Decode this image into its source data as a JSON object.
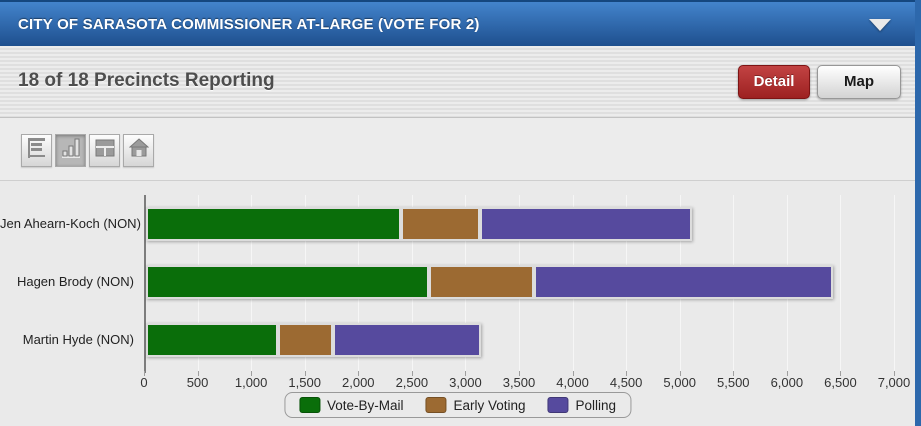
{
  "header": {
    "title": "CITY OF SARASOTA COMMISSIONER AT-LARGE (VOTE FOR 2)",
    "collapse_icon": "chevron-down-icon"
  },
  "statusbar": {
    "precincts_text": "18 of 18 Precincts Reporting",
    "detail_label": "Detail",
    "map_label": "Map"
  },
  "toolbar": {
    "view_buttons": [
      {
        "icon": "horizontal-bar-chart-icon",
        "selected": false
      },
      {
        "icon": "column-chart-icon",
        "selected": true
      },
      {
        "icon": "grid-view-icon",
        "selected": false
      },
      {
        "icon": "home-icon",
        "selected": false
      }
    ]
  },
  "colors": {
    "header_blue_top": "#4384cc",
    "header_blue_bottom": "#1e4f8e",
    "detail_button_red": "#a82a2a",
    "page_background_blue": "#2d68ac",
    "chart_background": "#eaeaea"
  },
  "chart_data": {
    "type": "bar",
    "orientation": "horizontal",
    "stacked": true,
    "grid": true,
    "legend_position": "bottom",
    "categories": [
      "Jen Ahearn-Koch (NON)",
      "Hagen Brody (NON)",
      "Martin Hyde (NON)"
    ],
    "series": [
      {
        "name": "Vote-By-Mail",
        "color": "#0a6e0a",
        "values": [
          2380,
          2640,
          1230
        ]
      },
      {
        "name": "Early Voting",
        "color": "#9c6a32",
        "values": [
          735,
          980,
          520
        ]
      },
      {
        "name": "Polling",
        "color": "#564a9e",
        "values": [
          1980,
          2790,
          1380
        ]
      }
    ],
    "totals": [
      5095,
      6410,
      3130
    ],
    "xlim": [
      0,
      7000
    ],
    "ticks": [
      {
        "value": 0,
        "label": "0"
      },
      {
        "value": 500,
        "label": "500"
      },
      {
        "value": 1000,
        "label": "1,000"
      },
      {
        "value": 1500,
        "label": "1,500"
      },
      {
        "value": 2000,
        "label": "2,000"
      },
      {
        "value": 2500,
        "label": "2,500"
      },
      {
        "value": 3000,
        "label": "3,000"
      },
      {
        "value": 3500,
        "label": "3,500"
      },
      {
        "value": 4000,
        "label": "4,000"
      },
      {
        "value": 4500,
        "label": "4,500"
      },
      {
        "value": 5000,
        "label": "5,000"
      },
      {
        "value": 5500,
        "label": "5,500"
      },
      {
        "value": 6000,
        "label": "6,000"
      },
      {
        "value": 6500,
        "label": "6,500"
      },
      {
        "value": 7000,
        "label": "7,000"
      }
    ]
  }
}
